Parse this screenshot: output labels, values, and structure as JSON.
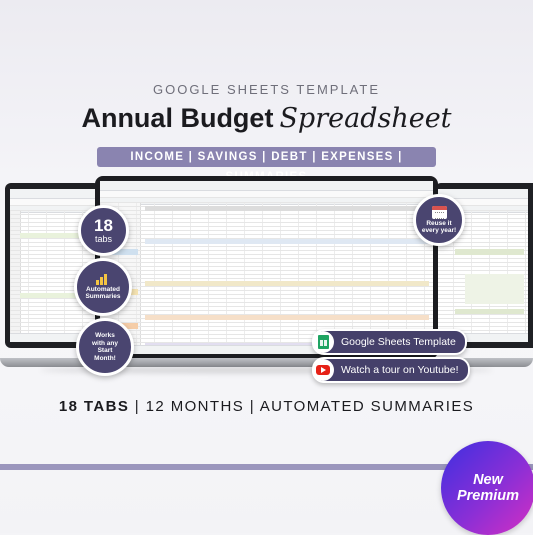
{
  "header": {
    "eyebrow": "GOOGLE SHEETS TEMPLATE",
    "title_bold": "Annual Budget",
    "title_script": "Spreadsheet",
    "categories": "INCOME | SAVINGS | DEBT | EXPENSES | SUMMARIES"
  },
  "callouts": {
    "tabs_number": "18",
    "tabs_label": "tabs",
    "summaries_line1": "Automated",
    "summaries_line2": "Summaries",
    "start_line1": "Works",
    "start_line2": "with any",
    "start_line3": "Start",
    "start_line4": "Month!",
    "reuse_line1": "Reuse it",
    "reuse_line2": "every year!"
  },
  "buttons": {
    "template_label": "Google Sheets Template",
    "youtube_label": "Watch a tour on Youtube!"
  },
  "tagline": {
    "part1": "18 TABS",
    "sep": " | ",
    "part2": "12 MONTHS",
    "part3": "AUTOMATED SUMMARIES"
  },
  "badge": {
    "line1": "New",
    "line2": "Premium"
  },
  "icons": [
    "chart-icon",
    "calendar-icon",
    "sheets-icon",
    "youtube-icon"
  ],
  "colors": {
    "accent_purple": "#8a84b0",
    "circle_fill": "#4a4570",
    "badge_start": "#3d2fe0",
    "badge_end": "#d62fc2",
    "sheets_green": "#1fa463",
    "youtube_red": "#e62117"
  }
}
